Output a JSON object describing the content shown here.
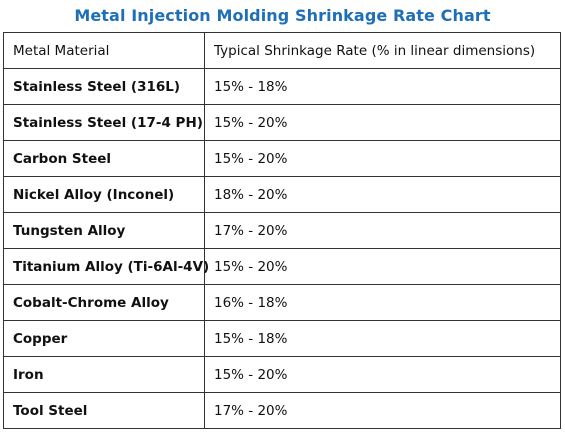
{
  "title": "Metal Injection Molding Shrinkage Rate Chart",
  "columns": [
    "Metal Material",
    "Typical Shrinkage Rate (% in linear dimensions)"
  ],
  "rows": [
    {
      "material": "Stainless Steel (316L)",
      "rate": "15% - 18%"
    },
    {
      "material": "Stainless Steel (17-4 PH)",
      "rate": "15% - 20%"
    },
    {
      "material": "Carbon Steel",
      "rate": "15% - 20%"
    },
    {
      "material": "Nickel Alloy (Inconel)",
      "rate": "18% - 20%"
    },
    {
      "material": "Tungsten Alloy",
      "rate": "17% - 20%"
    },
    {
      "material": "Titanium Alloy (Ti-6Al-4V)",
      "rate": "15% - 20%"
    },
    {
      "material": "Cobalt-Chrome Alloy",
      "rate": "16% - 18%"
    },
    {
      "material": "Copper",
      "rate": "15% - 18%"
    },
    {
      "material": "Iron",
      "rate": "15% - 20%"
    },
    {
      "material": "Tool Steel",
      "rate": "17% - 20%"
    }
  ]
}
